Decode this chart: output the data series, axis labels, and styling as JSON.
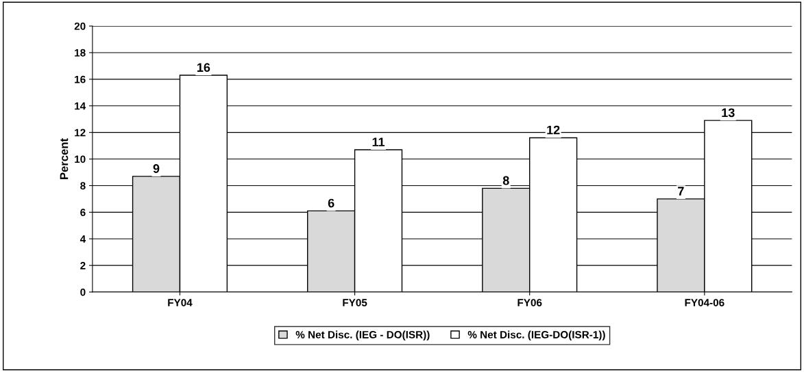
{
  "chart_data": {
    "type": "bar",
    "ylabel": "Percent",
    "categories": [
      "FY04",
      "FY05",
      "FY06",
      "FY04-06"
    ],
    "series": [
      {
        "name": "% Net Disc. (IEG - DO(ISR))",
        "color": "#d9d9d9",
        "values": [
          8.7,
          6.1,
          7.8,
          7.0
        ],
        "value_labels": [
          "9",
          "6",
          "8",
          "7"
        ]
      },
      {
        "name": "% Net Disc. (IEG-DO(ISR-1))",
        "color": "#ffffff",
        "values": [
          16.3,
          10.7,
          11.6,
          12.9
        ],
        "value_labels": [
          "16",
          "11",
          "12",
          "13"
        ]
      }
    ],
    "ylim": [
      0,
      20
    ],
    "yticks": [
      0,
      2,
      4,
      6,
      8,
      10,
      12,
      14,
      16,
      18,
      20
    ],
    "grid": "y",
    "legend": "bottom"
  }
}
